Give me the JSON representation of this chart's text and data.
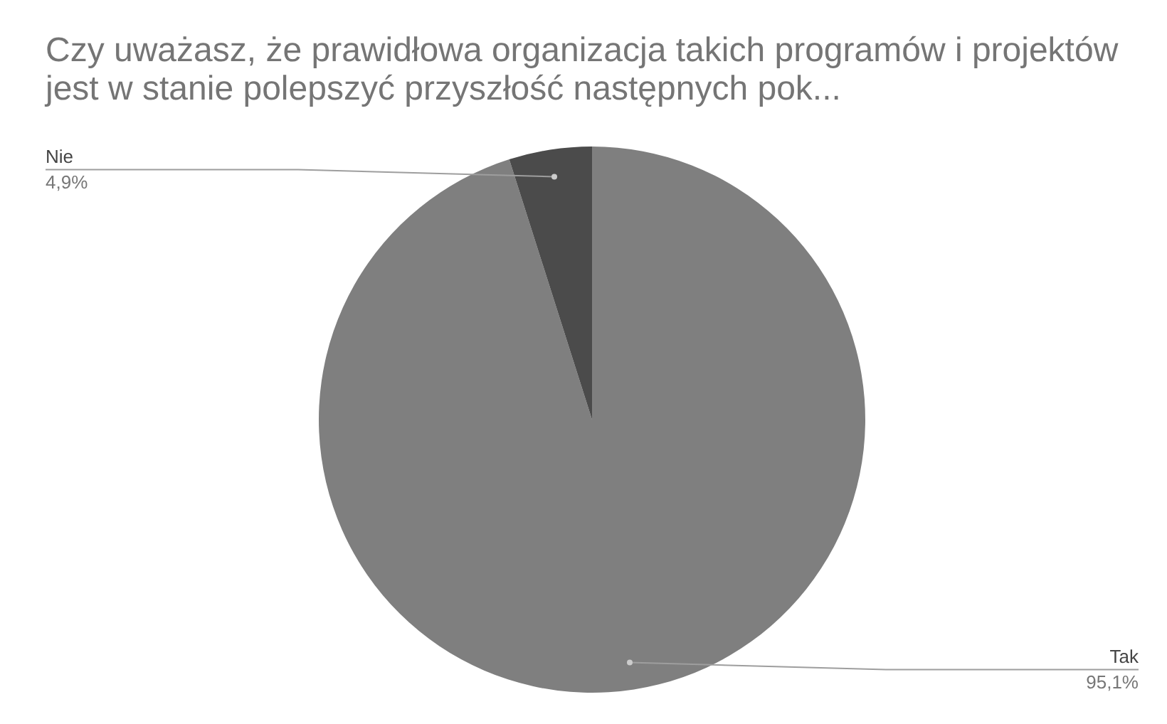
{
  "chart_data": {
    "type": "pie",
    "title": "Czy uważasz, że prawidłowa organizacja takich programów i projektów jest w stanie polepszyć przyszłość następnych pok...",
    "categories": [
      "Tak",
      "Nie"
    ],
    "values": [
      95.1,
      4.9
    ],
    "colors": [
      "#7f7f7f",
      "#4b4b4b"
    ],
    "value_labels": [
      "95,1%",
      "4,9%"
    ],
    "legend": false
  }
}
